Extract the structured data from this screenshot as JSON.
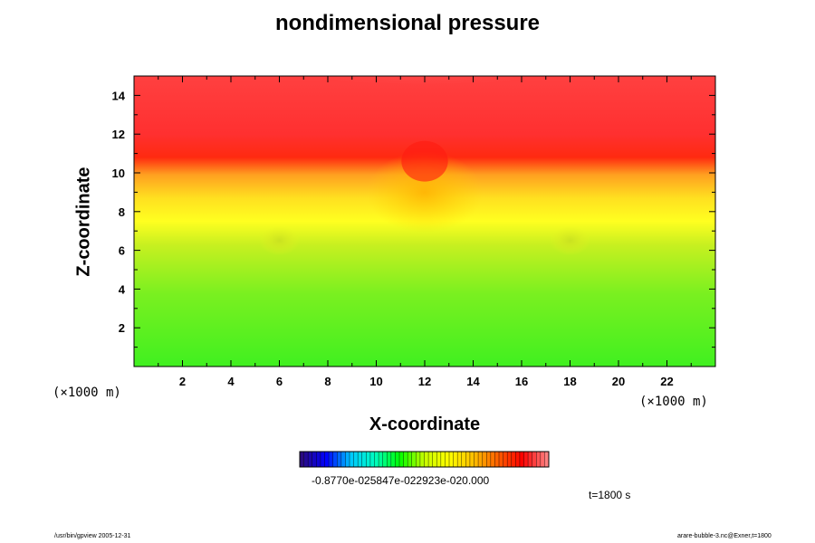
{
  "chart_data": {
    "type": "heatmap",
    "title": "nondimensional pressure",
    "xlabel": "X-coordinate",
    "ylabel": "Z-coordinate",
    "x_unit": "(×1000 m)",
    "z_unit": "(×1000 m)",
    "xlim": [
      0,
      24
    ],
    "ylim": [
      0,
      15
    ],
    "xticks": [
      2,
      4,
      6,
      8,
      10,
      12,
      14,
      16,
      18,
      20,
      22
    ],
    "yticks": [
      2,
      4,
      6,
      8,
      10,
      12,
      14
    ],
    "colorbar": {
      "labels": [
        "-0.8770e-02",
        "5847e-02",
        "2923e-02",
        "0.000"
      ],
      "label_text": "-0.8770e-025847e-022923e-020.000",
      "colormap": [
        "#2a0a80",
        "#0000ff",
        "#00c8ff",
        "#00ffc0",
        "#00ff00",
        "#c8ff00",
        "#ffff00",
        "#ffc000",
        "#ff6000",
        "#ff0000",
        "#ff8080"
      ]
    },
    "field_features": {
      "bubble_center_x": 12,
      "bubble_top_z": 11.8,
      "side_lobes_x": [
        6,
        18
      ],
      "side_lobes_z": 6.5,
      "boundary_z": 10.5
    }
  },
  "annotations": {
    "time": "t=1800 s",
    "footer_left": "/usr/bin/gpview 2005-12-31",
    "footer_right": "arare-bubble-3.nc@Exner,t=1800"
  }
}
